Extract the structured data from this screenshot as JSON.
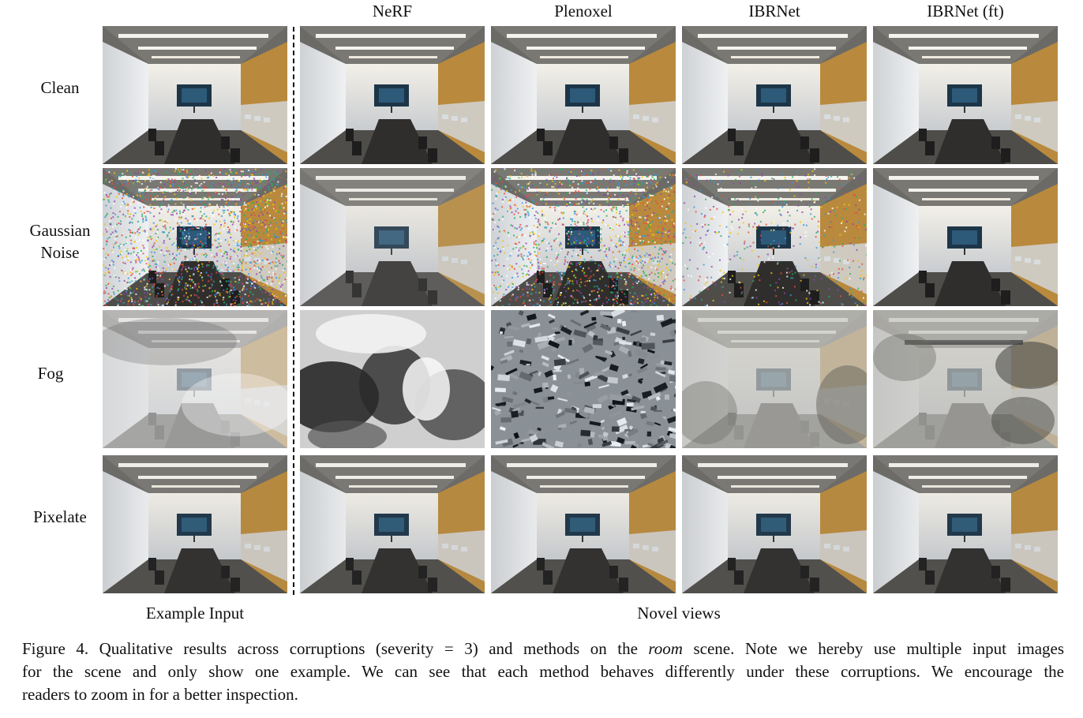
{
  "columns": [
    "NeRF",
    "Plenoxel",
    "IBRNet",
    "IBRNet (ft)"
  ],
  "rows": [
    {
      "label": "Clean",
      "kind": "clean"
    },
    {
      "label_line1": "Gaussian",
      "label_line2": "Noise",
      "kind": "noise"
    },
    {
      "label": "Fog",
      "kind": "fog"
    },
    {
      "label": "Pixelate",
      "kind": "pixel"
    }
  ],
  "footers": {
    "input": "Example Input",
    "novel": "Novel views"
  },
  "caption": {
    "line1_pre": "Figure 4. Qualitative results across corruptions (severity = 3) and methods on the ",
    "line1_em": "room",
    "line1_post": " scene. Note we hereby use multiple input images",
    "line2": "for the scene and only show one example. We can see that each method behaves differently under these corruptions. We encourage the",
    "line3": "readers to zoom in for a better inspection."
  },
  "colors": {
    "wood": "#b98a3d",
    "wall": "#e6e8ea",
    "ceiling": "#6b6a66",
    "floor": "#4e4d4a",
    "table": "#2f2e2c",
    "screen": "#1d3548"
  }
}
